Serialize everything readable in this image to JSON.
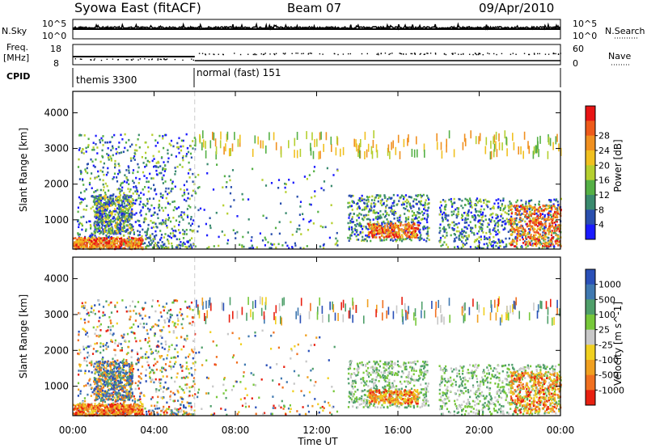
{
  "header": {
    "title": "Syowa East (fitACF)",
    "beam": "Beam 07",
    "date": "09/Apr/2010"
  },
  "top_panels": {
    "nsky_label": "N.Sky",
    "nsky_ticks": [
      "10^5",
      "10^0"
    ],
    "nsearch_label": "N.Search",
    "nsearch_ticks": [
      "10^5",
      "10^0"
    ],
    "freq_label_1": "Freq.",
    "freq_label_2": "[MHz]",
    "freq_ticks": [
      "18",
      "8"
    ],
    "nave_label": "Nave",
    "nave_ticks": [
      "60",
      "0"
    ],
    "cpid_label": "CPID",
    "cpid_segments": [
      {
        "label": "themis 3300",
        "start_hour": 0,
        "end_hour": 6
      },
      {
        "label": "normal (fast) 151",
        "start_hour": 6,
        "end_hour": 24
      }
    ]
  },
  "chart_data": [
    {
      "type": "heatmap",
      "name": "power",
      "ylabel": "Slant Range [km]",
      "y_ticks": [
        1000,
        2000,
        3000,
        4000
      ],
      "ylim": [
        180,
        4600
      ],
      "xlim": [
        0,
        24
      ],
      "colorbar_label": "Power [dB]",
      "colorbar_ticks": [
        "4",
        "8",
        "12",
        "16",
        "20",
        "24",
        "28"
      ],
      "colorbar_colors": [
        "#1a1aff",
        "#2a4fae",
        "#3a8a6e",
        "#55b045",
        "#b5cf2f",
        "#f0c020",
        "#f09020",
        "#ee5a1a",
        "#e81414"
      ]
    },
    {
      "type": "heatmap",
      "name": "velocity",
      "ylabel": "Slant Range [km]",
      "y_ticks": [
        1000,
        2000,
        3000,
        4000
      ],
      "ylim": [
        180,
        4600
      ],
      "xlim": [
        0,
        24
      ],
      "colorbar_label": "Velocity [m s^-1]",
      "colorbar_ticks": [
        "1000",
        "500",
        "100",
        "25",
        "-25",
        "-100",
        "-500",
        "-1000"
      ],
      "colorbar_colors": [
        "#2a50b8",
        "#3f78b0",
        "#4f9f6a",
        "#77c83a",
        "#c8c8c8",
        "#f0d020",
        "#f0a020",
        "#f07020",
        "#e82010"
      ]
    }
  ],
  "x_axis": {
    "tick_labels": [
      "00:00",
      "04:00",
      "08:00",
      "12:00",
      "16:00",
      "20:00",
      "00:00"
    ],
    "label": "Time UT"
  }
}
